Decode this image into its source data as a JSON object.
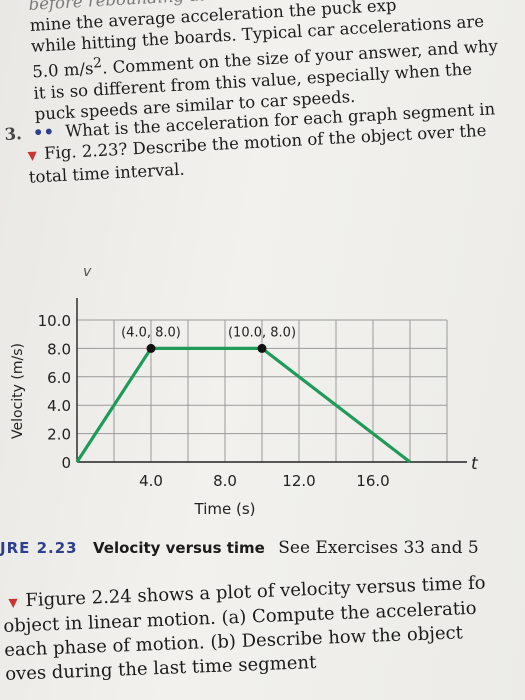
{
  "top_paragraph": {
    "lines": [
      "mine the average acceleration the puck exp",
      "while hitting the boards. Typical car accelerations are",
      "5.0 m/s². Comment on the size of your answer, and why",
      "it is so different from this value, especially when the",
      "puck speeds are similar to car speeds."
    ],
    "faded_line": "before rebounding at"
  },
  "question": {
    "number": "3.",
    "dots": "••",
    "lines": [
      "What is the acceleration for each graph segment in",
      "Fig. 2.23? Describe the motion of the object over the",
      "total time interval."
    ]
  },
  "chart_data": {
    "type": "line",
    "title": "",
    "xlabel": "Time (s)",
    "ylabel": "Velocity (m/s)",
    "x_axis_symbol": "t",
    "y_axis_symbol": "v",
    "x_ticks": [
      "4.0",
      "8.0",
      "12.0",
      "16.0"
    ],
    "y_ticks": [
      "0",
      "2.0",
      "4.0",
      "6.0",
      "8.0",
      "10.0"
    ],
    "xlim": [
      0,
      20
    ],
    "ylim": [
      0,
      10
    ],
    "grid": true,
    "series": [
      {
        "x": [
          0,
          4.0,
          10.0,
          18.0
        ],
        "y": [
          0,
          8.0,
          8.0,
          0
        ],
        "color": "#1f9a59"
      }
    ],
    "annotations": [
      {
        "text": "(4.0, 8.0)",
        "x": 4.0,
        "y": 8.0
      },
      {
        "text": "(10.0, 8.0)",
        "x": 10.0,
        "y": 8.0
      }
    ]
  },
  "caption": {
    "label": "JRE 2.23",
    "title": "Velocity versus time",
    "text": "See Exercises 33 and 5"
  },
  "bottom_paragraph": {
    "lines": [
      "Figure 2.24 shows a plot of velocity versus time fo",
      "object in linear motion. (a) Compute the acceleratio",
      "each phase of motion. (b) Describe how the object",
      "oves during the last time segment"
    ]
  }
}
